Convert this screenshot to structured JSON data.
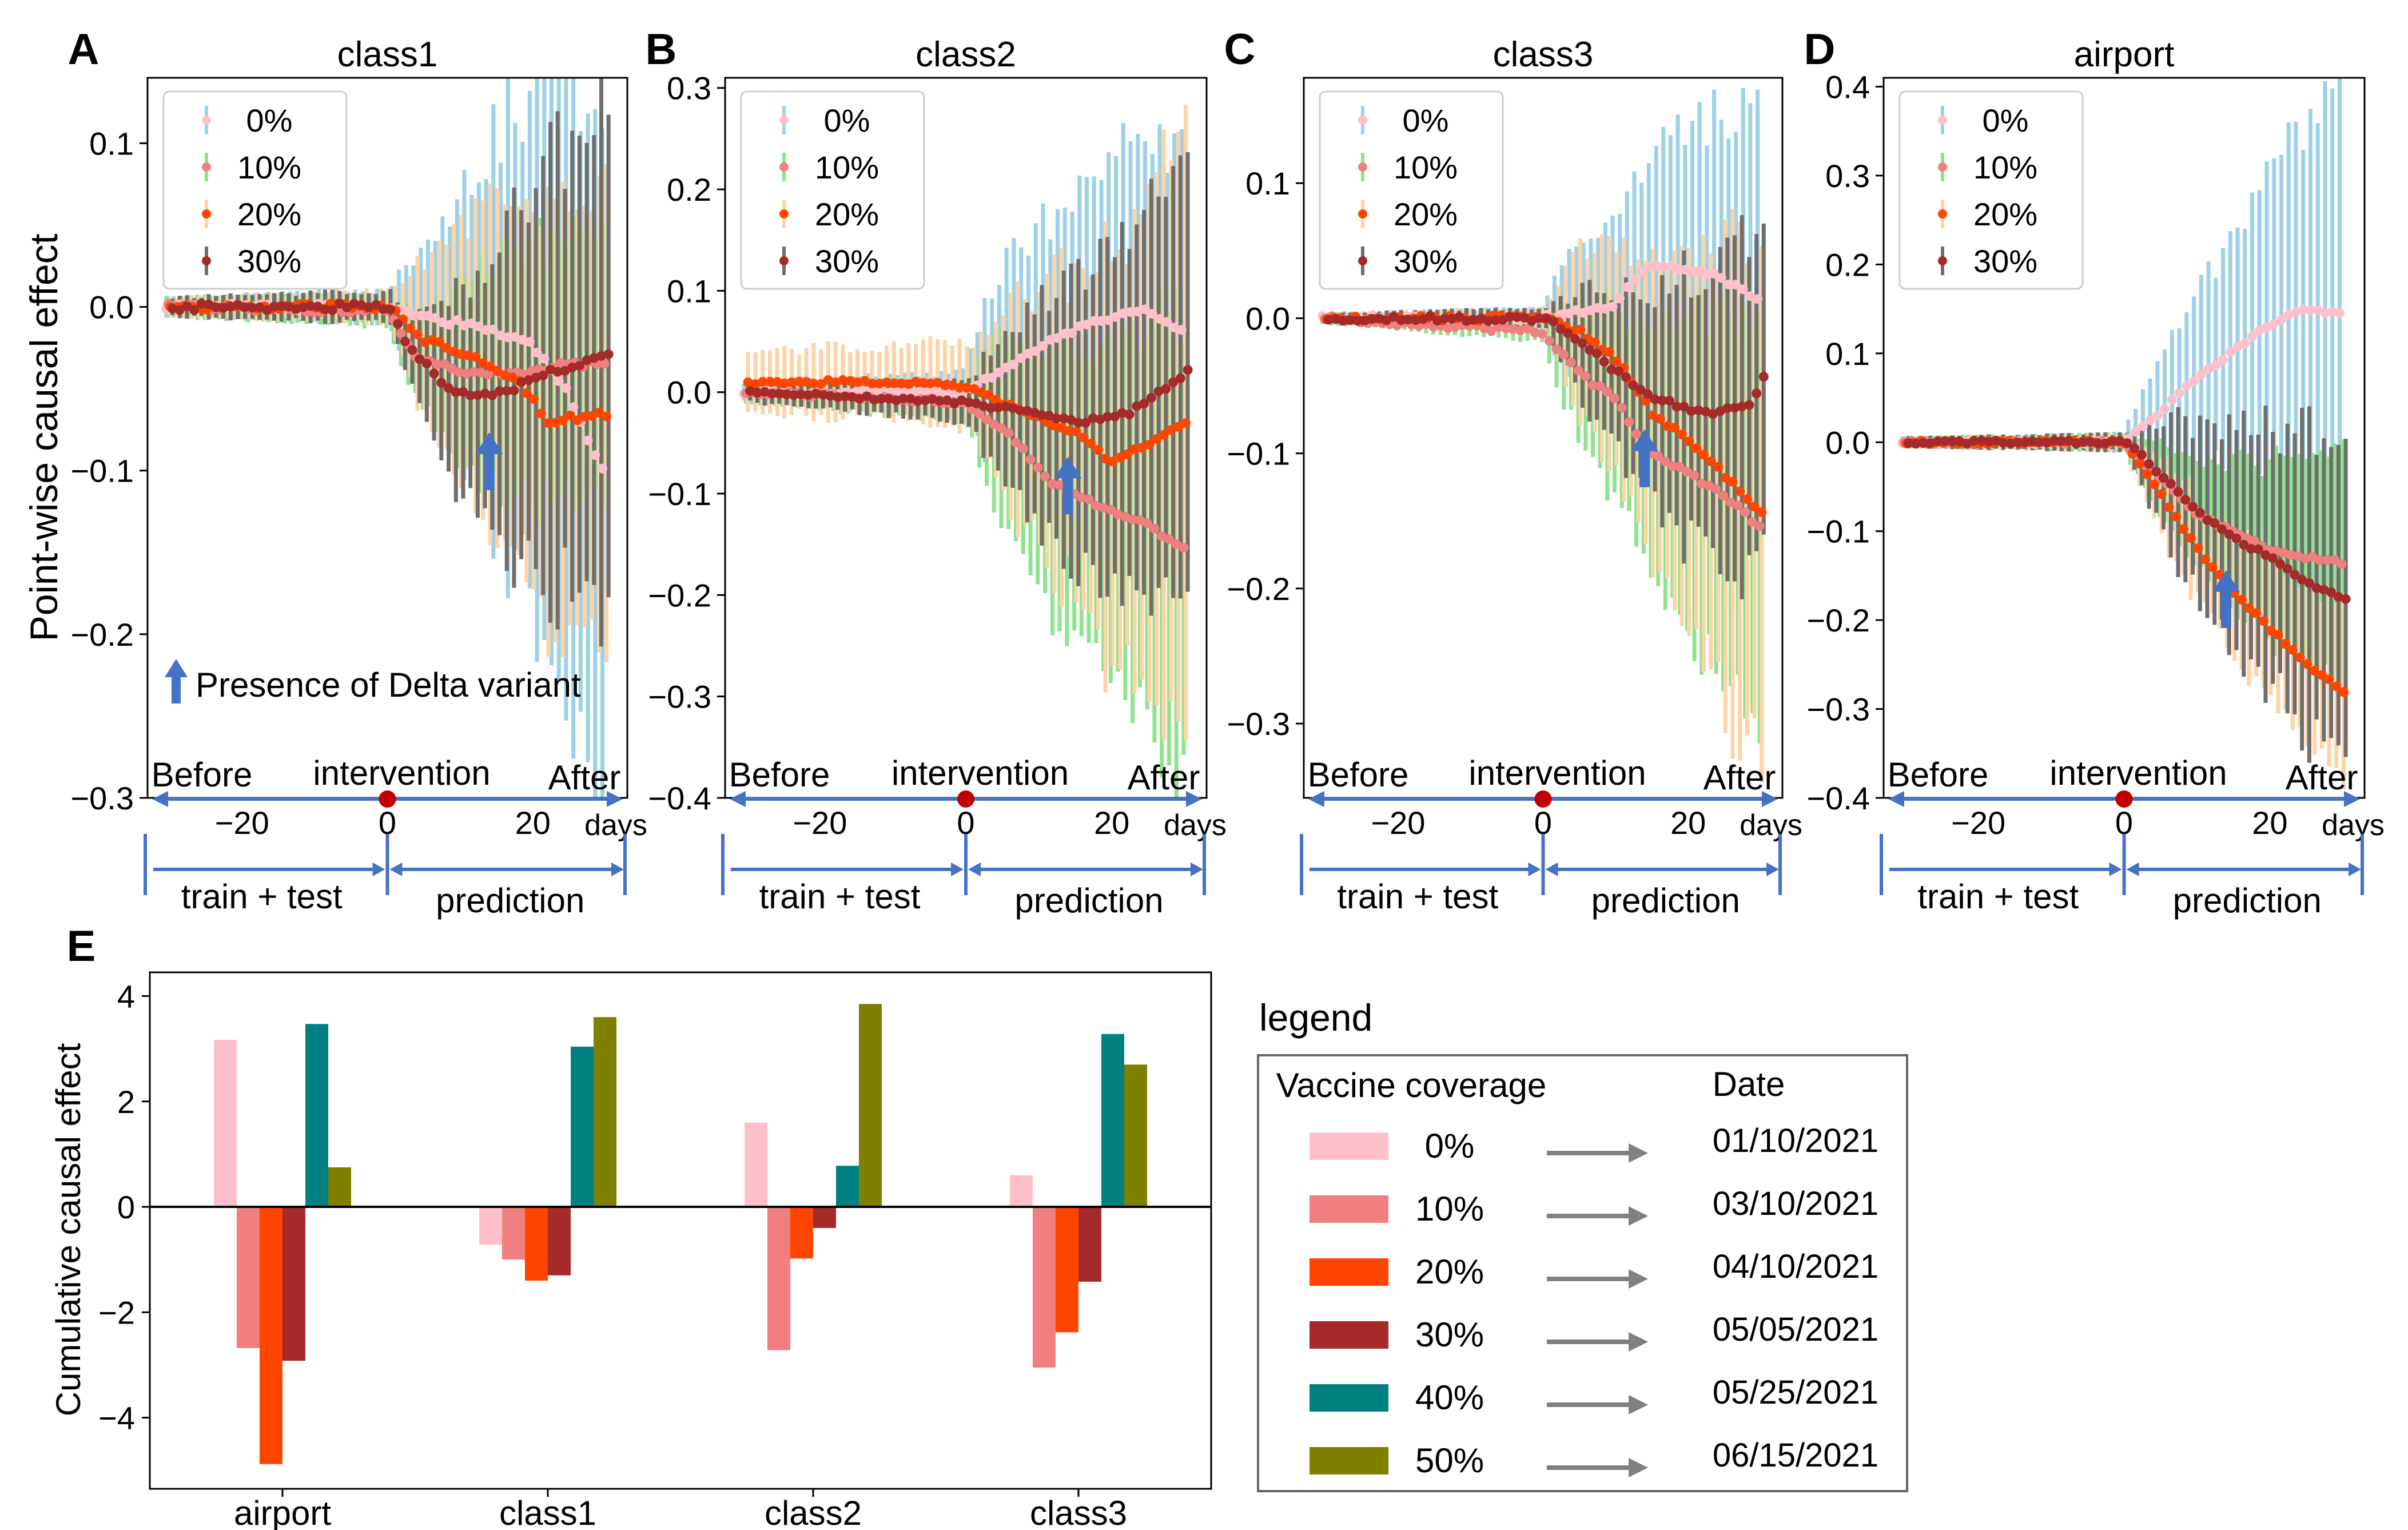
{
  "figure": {
    "panel_letters": [
      "A",
      "B",
      "C",
      "D",
      "E"
    ],
    "point_ylabel": "Point-wise causal effect",
    "arrow_note": "Presence of Delta variant",
    "timeline": {
      "before": "Before",
      "intervention": "intervention",
      "after": "After",
      "days": "days",
      "train": "train + test",
      "prediction": "prediction"
    }
  },
  "colors": {
    "0%": "#FFC0CB",
    "10%": "#F08080",
    "20%": "#FF4500",
    "30%": "#A52A2A",
    "40%": "#008080",
    "50%": "#808000",
    "err_0": "#9DD1E8",
    "err_10": "#8FE38F",
    "err_20": "#FFD3A6",
    "err_30": "#6E6E6E",
    "arrow": "#4472C4",
    "marker": "#C00000"
  },
  "chart_data": [
    {
      "type": "line",
      "panel": "A",
      "title": "class1",
      "xlabel": "days",
      "ylabel": "Point-wise causal effect",
      "xlim": [
        -33,
        33
      ],
      "ylim": [
        -0.3,
        0.14
      ],
      "xticks": [
        -20,
        0,
        20
      ],
      "yticks": [
        0.1,
        0.0,
        -0.1,
        -0.2,
        -0.3
      ],
      "ytick_labels": [
        "0.1",
        "0.0",
        "−0.1",
        "−0.2",
        "−0.3"
      ],
      "legend": "top-left",
      "arrow_day": 14,
      "series": [
        {
          "name": "0%",
          "anchors": [
            [
              -30,
              0
            ],
            [
              0,
              0
            ],
            [
              3,
              -0.003
            ],
            [
              10,
              -0.01
            ],
            [
              20,
              -0.02
            ],
            [
              25,
              -0.05
            ],
            [
              30,
              -0.1
            ]
          ],
          "err": [
            0.006,
            0.01,
            0.04,
            0.12,
            0.17,
            0.23
          ]
        },
        {
          "name": "10%",
          "anchors": [
            [
              -30,
              0
            ],
            [
              0,
              -0.002
            ],
            [
              4,
              -0.03
            ],
            [
              10,
              -0.04
            ],
            [
              20,
              -0.04
            ],
            [
              25,
              -0.035
            ],
            [
              30,
              -0.035
            ]
          ],
          "err": [
            0.006,
            0.01,
            0.03,
            0.07,
            0.08,
            0.08
          ]
        },
        {
          "name": "20%",
          "anchors": [
            [
              -30,
              0
            ],
            [
              0,
              0
            ],
            [
              5,
              -0.02
            ],
            [
              12,
              -0.03
            ],
            [
              18,
              -0.045
            ],
            [
              22,
              -0.07
            ],
            [
              30,
              -0.065
            ]
          ],
          "err": [
            0.006,
            0.01,
            0.05,
            0.1,
            0.12,
            0.15
          ]
        },
        {
          "name": "30%",
          "anchors": [
            [
              -30,
              0
            ],
            [
              0,
              0
            ],
            [
              2,
              -0.02
            ],
            [
              8,
              -0.05
            ],
            [
              14,
              -0.055
            ],
            [
              22,
              -0.04
            ],
            [
              30,
              -0.03
            ]
          ],
          "err": [
            0.006,
            0.01,
            0.03,
            0.1,
            0.13,
            0.15
          ]
        }
      ]
    },
    {
      "type": "line",
      "panel": "B",
      "title": "class2",
      "xlabel": "days",
      "ylabel": "",
      "xlim": [
        -33,
        33
      ],
      "ylim": [
        -0.4,
        0.31
      ],
      "xticks": [
        -20,
        0,
        20
      ],
      "yticks": [
        0.3,
        0.2,
        0.1,
        0.0,
        -0.1,
        -0.2,
        -0.3,
        -0.4
      ],
      "ytick_labels": [
        "0.3",
        "0.2",
        "0.1",
        "0.0",
        "−0.1",
        "−0.2",
        "−0.3",
        "−0.4"
      ],
      "legend": "top-left",
      "arrow_day": 14,
      "series": [
        {
          "name": "0%",
          "anchors": [
            [
              -30,
              0
            ],
            [
              0,
              0
            ],
            [
              5,
              0.02
            ],
            [
              12,
              0.05
            ],
            [
              18,
              0.07
            ],
            [
              25,
              0.08
            ],
            [
              30,
              0.06
            ]
          ],
          "err": [
            0.01,
            0.02,
            0.1,
            0.13,
            0.16,
            0.19
          ]
        },
        {
          "name": "10%",
          "anchors": [
            [
              -30,
              0
            ],
            [
              0,
              -0.01
            ],
            [
              6,
              -0.04
            ],
            [
              12,
              -0.09
            ],
            [
              18,
              -0.11
            ],
            [
              25,
              -0.13
            ],
            [
              30,
              -0.155
            ]
          ],
          "err": [
            0.01,
            0.02,
            0.09,
            0.14,
            0.18,
            0.22
          ]
        },
        {
          "name": "20%",
          "anchors": [
            [
              -30,
              0.01
            ],
            [
              -5,
              0.01
            ],
            [
              0,
              0.005
            ],
            [
              8,
              -0.02
            ],
            [
              15,
              -0.04
            ],
            [
              20,
              -0.07
            ],
            [
              30,
              -0.03
            ]
          ],
          "err": [
            0.03,
            0.04,
            0.1,
            0.16,
            0.22,
            0.3
          ]
        },
        {
          "name": "30%",
          "anchors": [
            [
              -30,
              0
            ],
            [
              0,
              -0.01
            ],
            [
              8,
              -0.02
            ],
            [
              15,
              -0.03
            ],
            [
              22,
              -0.02
            ],
            [
              30,
              0.02
            ]
          ],
          "err": [
            0.01,
            0.02,
            0.08,
            0.14,
            0.18,
            0.22
          ]
        }
      ]
    },
    {
      "type": "line",
      "panel": "C",
      "title": "class3",
      "xlabel": "days",
      "ylabel": "",
      "xlim": [
        -33,
        33
      ],
      "ylim": [
        -0.355,
        0.178
      ],
      "xticks": [
        -20,
        0,
        20
      ],
      "yticks": [
        0.1,
        0.0,
        -0.1,
        -0.2,
        -0.3
      ],
      "ytick_labels": [
        "0.1",
        "0.0",
        "−0.1",
        "−0.2",
        "−0.3"
      ],
      "legend": "top-left",
      "arrow_day": 14,
      "series": [
        {
          "name": "0%",
          "anchors": [
            [
              -30,
              0
            ],
            [
              0,
              0
            ],
            [
              5,
              0.005
            ],
            [
              10,
              0.01
            ],
            [
              15,
              0.04
            ],
            [
              25,
              0.03
            ],
            [
              30,
              0.015
            ]
          ],
          "err": [
            0.004,
            0.008,
            0.05,
            0.08,
            0.11,
            0.14
          ]
        },
        {
          "name": "10%",
          "anchors": [
            [
              -30,
              0
            ],
            [
              0,
              -0.01
            ],
            [
              5,
              -0.04
            ],
            [
              10,
              -0.06
            ],
            [
              15,
              -0.1
            ],
            [
              25,
              -0.13
            ],
            [
              30,
              -0.155
            ]
          ],
          "err": [
            0.004,
            0.008,
            0.05,
            0.09,
            0.12,
            0.14
          ]
        },
        {
          "name": "20%",
          "anchors": [
            [
              -30,
              0
            ],
            [
              0,
              0
            ],
            [
              5,
              -0.01
            ],
            [
              10,
              -0.03
            ],
            [
              15,
              -0.07
            ],
            [
              22,
              -0.1
            ],
            [
              30,
              -0.145
            ]
          ],
          "err": [
            0.004,
            0.008,
            0.06,
            0.11,
            0.16,
            0.2
          ]
        },
        {
          "name": "30%",
          "anchors": [
            [
              -30,
              0
            ],
            [
              0,
              0
            ],
            [
              5,
              -0.02
            ],
            [
              10,
              -0.04
            ],
            [
              15,
              -0.06
            ],
            [
              22,
              -0.07
            ],
            [
              28,
              -0.065
            ],
            [
              30,
              -0.045
            ]
          ],
          "err": [
            0.004,
            0.008,
            0.04,
            0.08,
            0.11,
            0.13
          ]
        }
      ]
    },
    {
      "type": "line",
      "panel": "D",
      "title": "airport",
      "xlabel": "days",
      "ylabel": "",
      "xlim": [
        -33,
        33
      ],
      "ylim": [
        -0.4,
        0.41
      ],
      "xticks": [
        -20,
        0,
        20
      ],
      "yticks": [
        0.4,
        0.3,
        0.2,
        0.1,
        0.0,
        -0.1,
        -0.2,
        -0.3,
        -0.4
      ],
      "ytick_labels": [
        "0.4",
        "0.3",
        "0.2",
        "0.1",
        "0.0",
        "−0.1",
        "−0.2",
        "−0.3",
        "−0.4"
      ],
      "legend": "top-left",
      "arrow_day": 14,
      "series": [
        {
          "name": "0%",
          "anchors": [
            [
              -30,
              0
            ],
            [
              0,
              0
            ],
            [
              5,
              0.03
            ],
            [
              10,
              0.07
            ],
            [
              15,
              0.1
            ],
            [
              20,
              0.13
            ],
            [
              25,
              0.15
            ],
            [
              30,
              0.145
            ]
          ],
          "err": [
            0.006,
            0.01,
            0.06,
            0.12,
            0.18,
            0.23
          ]
        },
        {
          "name": "10%",
          "anchors": [
            [
              -30,
              0
            ],
            [
              0,
              0
            ],
            [
              5,
              -0.04
            ],
            [
              10,
              -0.08
            ],
            [
              15,
              -0.1
            ],
            [
              20,
              -0.12
            ],
            [
              25,
              -0.13
            ],
            [
              30,
              -0.135
            ]
          ],
          "err": [
            0.006,
            0.01,
            0.04,
            0.08,
            0.11,
            0.13
          ]
        },
        {
          "name": "20%",
          "anchors": [
            [
              -30,
              0
            ],
            [
              0,
              0
            ],
            [
              5,
              -0.06
            ],
            [
              10,
              -0.12
            ],
            [
              15,
              -0.17
            ],
            [
              20,
              -0.21
            ],
            [
              25,
              -0.25
            ],
            [
              30,
              -0.28
            ]
          ],
          "err": [
            0.006,
            0.01,
            0.05,
            0.07,
            0.09,
            0.11
          ]
        },
        {
          "name": "30%",
          "anchors": [
            [
              -30,
              0
            ],
            [
              0,
              0
            ],
            [
              5,
              -0.04
            ],
            [
              10,
              -0.08
            ],
            [
              15,
              -0.11
            ],
            [
              20,
              -0.13
            ],
            [
              25,
              -0.16
            ],
            [
              30,
              -0.175
            ]
          ],
          "err": [
            0.006,
            0.01,
            0.07,
            0.12,
            0.16,
            0.19
          ]
        }
      ]
    },
    {
      "type": "bar",
      "panel": "E",
      "title": "",
      "xlabel": "",
      "ylabel": "Cumulative causal effect",
      "categories": [
        "airport",
        "class1",
        "class2",
        "class3"
      ],
      "ylim": [
        -5.35,
        4.45
      ],
      "yticks": [
        4,
        2,
        0,
        -2,
        -4
      ],
      "ytick_labels": [
        "4",
        "2",
        "0",
        "−2",
        "−4"
      ],
      "series": [
        {
          "name": "0%",
          "values": [
            3.17,
            -0.72,
            1.6,
            0.6
          ]
        },
        {
          "name": "10%",
          "values": [
            -2.68,
            -1.0,
            -2.72,
            -3.05
          ]
        },
        {
          "name": "20%",
          "values": [
            -4.88,
            -1.4,
            -0.98,
            -2.38
          ]
        },
        {
          "name": "30%",
          "values": [
            -2.92,
            -1.3,
            -0.4,
            -1.42
          ]
        },
        {
          "name": "40%",
          "values": [
            3.47,
            3.04,
            0.78,
            3.28
          ]
        },
        {
          "name": "50%",
          "values": [
            0.75,
            3.6,
            3.85,
            2.7
          ]
        }
      ],
      "legend_title": "legend",
      "legend_headers": {
        "coverage": "Vaccine coverage",
        "date": "Date"
      },
      "legend_entries": [
        {
          "coverage": "0%",
          "date": "01/10/2021"
        },
        {
          "coverage": "10%",
          "date": "03/10/2021"
        },
        {
          "coverage": "20%",
          "date": "04/10/2021"
        },
        {
          "coverage": "30%",
          "date": "05/05/2021"
        },
        {
          "coverage": "40%",
          "date": "05/25/2021"
        },
        {
          "coverage": "50%",
          "date": "06/15/2021"
        }
      ]
    }
  ]
}
